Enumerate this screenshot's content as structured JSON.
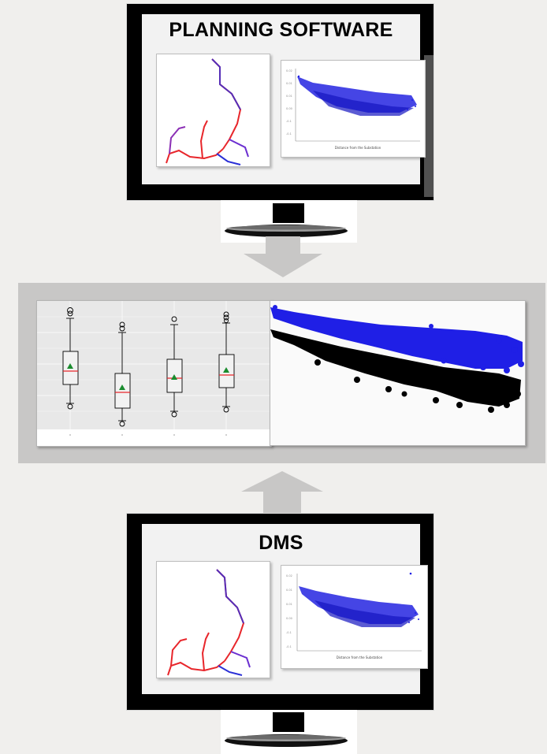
{
  "top_monitor": {
    "title": "PLANNING SOFTWARE",
    "scatter_axis_label": "Distance from the Substation"
  },
  "bottom_monitor": {
    "title": "DMS",
    "scatter_axis_label": "Distance from the Substation"
  },
  "colors": {
    "feeder_red": "#e8262b",
    "feeder_blue": "#2a2fd6",
    "scatter_blue": "#1f1fe6",
    "scatter_black": "#000000",
    "box_median": "#e8262b",
    "box_mean": "#1a8c2e",
    "hub_background": "#c8c7c6",
    "arrow": "#c8c7c6"
  },
  "icons": [
    "down-arrow-icon",
    "up-arrow-icon",
    "monitor-stand-icon"
  ]
}
